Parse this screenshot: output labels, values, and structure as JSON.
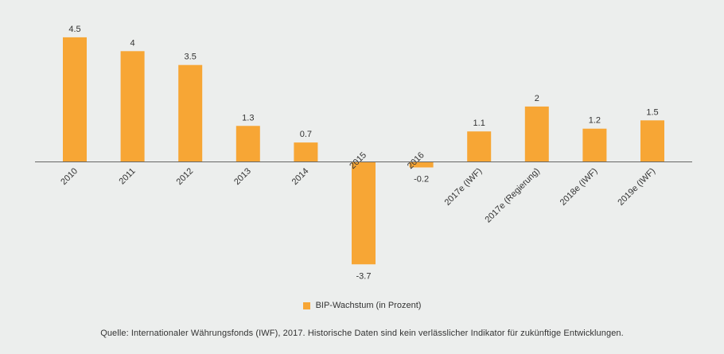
{
  "chart_data": {
    "type": "bar",
    "categories": [
      "2010",
      "2011",
      "2012",
      "2013",
      "2014",
      "2015",
      "2016",
      "2017e (IWF)",
      "2017e (Regierung)",
      "2018e (IWF)",
      "2019e (IWF)"
    ],
    "values": [
      4.5,
      4,
      3.5,
      1.3,
      0.7,
      -3.7,
      -0.2,
      1.1,
      2,
      1.2,
      1.5
    ],
    "value_labels": [
      "4.5",
      "4",
      "3.5",
      "1.3",
      "0.7",
      "-3.7",
      "-0.2",
      "1.1",
      "2",
      "1.2",
      "1.5"
    ],
    "series_name": "BIP-Wachstum (in Prozent)",
    "title": "",
    "xlabel": "",
    "ylabel": "",
    "ylim": [
      -3.7,
      4.5
    ],
    "legend_position": "bottom-center",
    "grid": false,
    "bar_color": "#f7a635",
    "axis_color": "#666666"
  },
  "legend": {
    "label": "BIP-Wachstum (in Prozent)"
  },
  "source": "Quelle: Internationaler Währungsfonds (IWF), 2017. Historische Daten sind kein verlässlicher Indikator für zukünftige Entwicklungen."
}
